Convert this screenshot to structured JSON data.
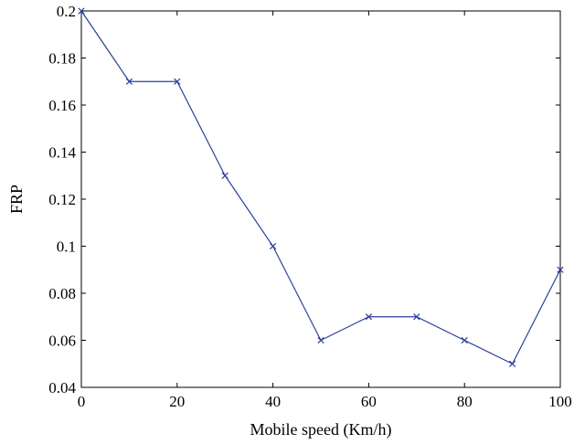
{
  "chart_data": {
    "type": "line",
    "title": "",
    "xlabel": "Mobile speed (Km/h)",
    "ylabel": "FRP",
    "xlim": [
      0,
      100
    ],
    "ylim": [
      0.04,
      0.2
    ],
    "xticks": [
      0,
      20,
      40,
      60,
      80,
      100
    ],
    "xtick_labels": [
      "0",
      "20",
      "40",
      "60",
      "80",
      "100"
    ],
    "yticks": [
      0.04,
      0.06,
      0.08,
      0.1,
      0.12,
      0.14,
      0.16,
      0.18,
      0.2
    ],
    "ytick_labels": [
      "0.04",
      "0.06",
      "0.08",
      "0.1",
      "0.12",
      "0.14",
      "0.16",
      "0.18",
      "0.2"
    ],
    "grid": false,
    "legend": "none",
    "series": [
      {
        "color": "#2b3f9e",
        "marker": "x",
        "x": [
          0,
          10,
          20,
          30,
          40,
          50,
          60,
          70,
          80,
          90,
          100
        ],
        "y": [
          0.2,
          0.17,
          0.17,
          0.13,
          0.1,
          0.06,
          0.07,
          0.07,
          0.06,
          0.05,
          0.09
        ]
      }
    ]
  }
}
